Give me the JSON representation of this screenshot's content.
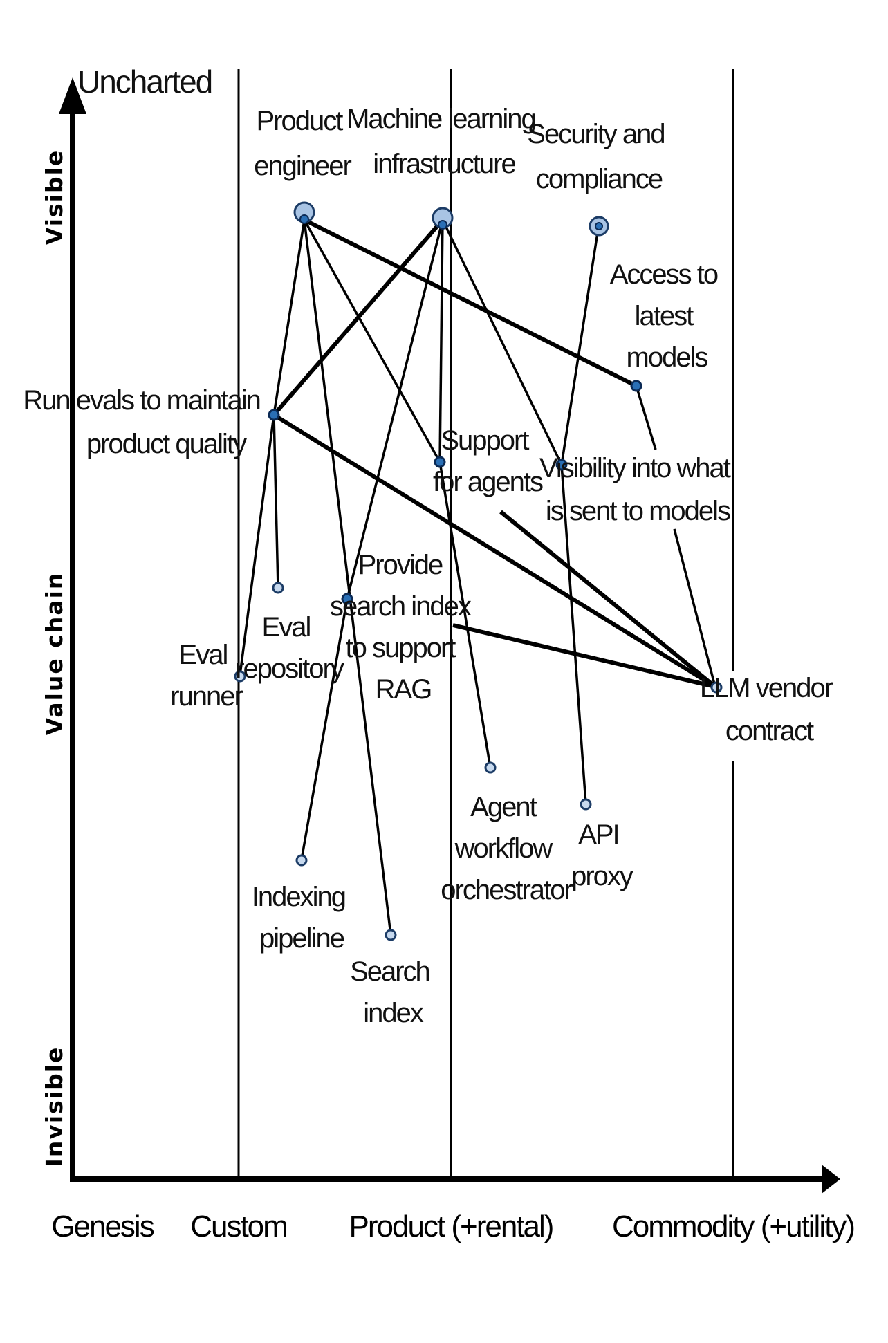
{
  "axes": {
    "y_top": "Uncharted",
    "y_visible": "Visible",
    "y_value_chain": "Value chain",
    "y_invisible": "Invisible",
    "stages": [
      "Genesis",
      "Custom",
      "Product (+rental)",
      "Commodity (+utility)"
    ]
  },
  "components": {
    "product_engineer": [
      "Product",
      "engineer"
    ],
    "ml_infrastructure": [
      "Machine learning",
      "infrastructure"
    ],
    "security_compliance": [
      "Security and",
      "compliance"
    ],
    "access_latest_models": [
      "Access to",
      "latest",
      "models"
    ],
    "run_evals": [
      "Run evals to maintain",
      "product quality"
    ],
    "support_agents": [
      "Support",
      "for agents"
    ],
    "visibility_models": [
      "Visibility into what",
      "is sent to models"
    ],
    "provide_search_index": [
      "Provide",
      "search index",
      "to support",
      "RAG"
    ],
    "eval_repository": [
      "Eval",
      "repository"
    ],
    "eval_runner": [
      "Eval",
      "runner"
    ],
    "llm_vendor_contract": [
      "LLM vendor",
      "contract"
    ],
    "agent_workflow": [
      "Agent",
      "workflow",
      "orchestrator"
    ],
    "api_proxy": [
      "API",
      "proxy"
    ],
    "indexing_pipeline": [
      "Indexing",
      "pipeline"
    ],
    "search_index": [
      "Search",
      "index"
    ]
  },
  "colors": {
    "node_fill": "#2a6fb5",
    "node_light_fill": "#c7d9ee",
    "user_fill": "#a9c4e4"
  }
}
